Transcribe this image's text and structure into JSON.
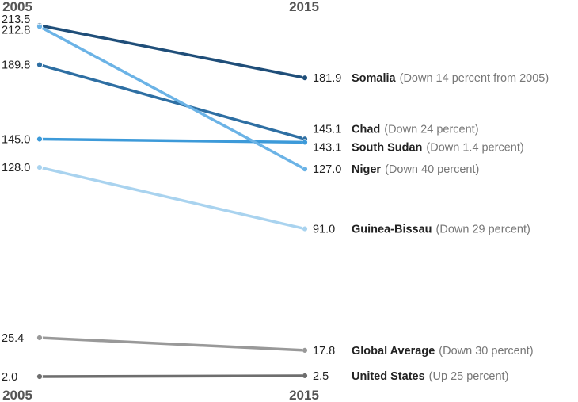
{
  "chart_data": {
    "type": "line",
    "x": [
      "2005",
      "2015"
    ],
    "top_years": [
      "2005",
      "2015"
    ],
    "bottom_years": [
      "2005",
      "2015"
    ],
    "series": [
      {
        "name": "Somalia",
        "note": "(Down 14 percent from 2005)",
        "values": [
          213.5,
          181.9
        ],
        "labels": [
          "213.5",
          "181.9"
        ],
        "color": "#1f4e79"
      },
      {
        "name": "Chad",
        "note": "(Down 24 percent)",
        "values": [
          189.8,
          145.1
        ],
        "labels": [
          "189.8",
          "145.1"
        ],
        "color": "#2e6fa3"
      },
      {
        "name": "South Sudan",
        "note": "(Down 1.4 percent)",
        "values": [
          145.0,
          143.1
        ],
        "labels": [
          "145.0",
          "143.1"
        ],
        "color": "#3d9ad9"
      },
      {
        "name": "Niger",
        "note": "(Down 40 percent)",
        "values": [
          212.8,
          127.0
        ],
        "labels": [
          "212.8",
          "127.0"
        ],
        "color": "#6bb3e6"
      },
      {
        "name": "Guinea-Bissau",
        "note": "(Down 29 percent)",
        "values": [
          128.0,
          91.0
        ],
        "labels": [
          "128.0",
          "91.0"
        ],
        "color": "#a9d3ef"
      },
      {
        "name": "Global Average",
        "note": "(Down 30 percent)",
        "values": [
          25.4,
          17.8
        ],
        "labels": [
          "25.4",
          "17.8"
        ],
        "color": "#999999"
      },
      {
        "name": "United States",
        "note": "(Up 25 percent)",
        "values": [
          2.0,
          2.5
        ],
        "labels": [
          "2.0",
          "2.5"
        ],
        "color": "#6e6e6e"
      }
    ],
    "title": "",
    "xlabel": "",
    "ylabel": "",
    "ylim": [
      2.0,
      213.5
    ],
    "grid": false,
    "legend": "direct labels at right"
  }
}
